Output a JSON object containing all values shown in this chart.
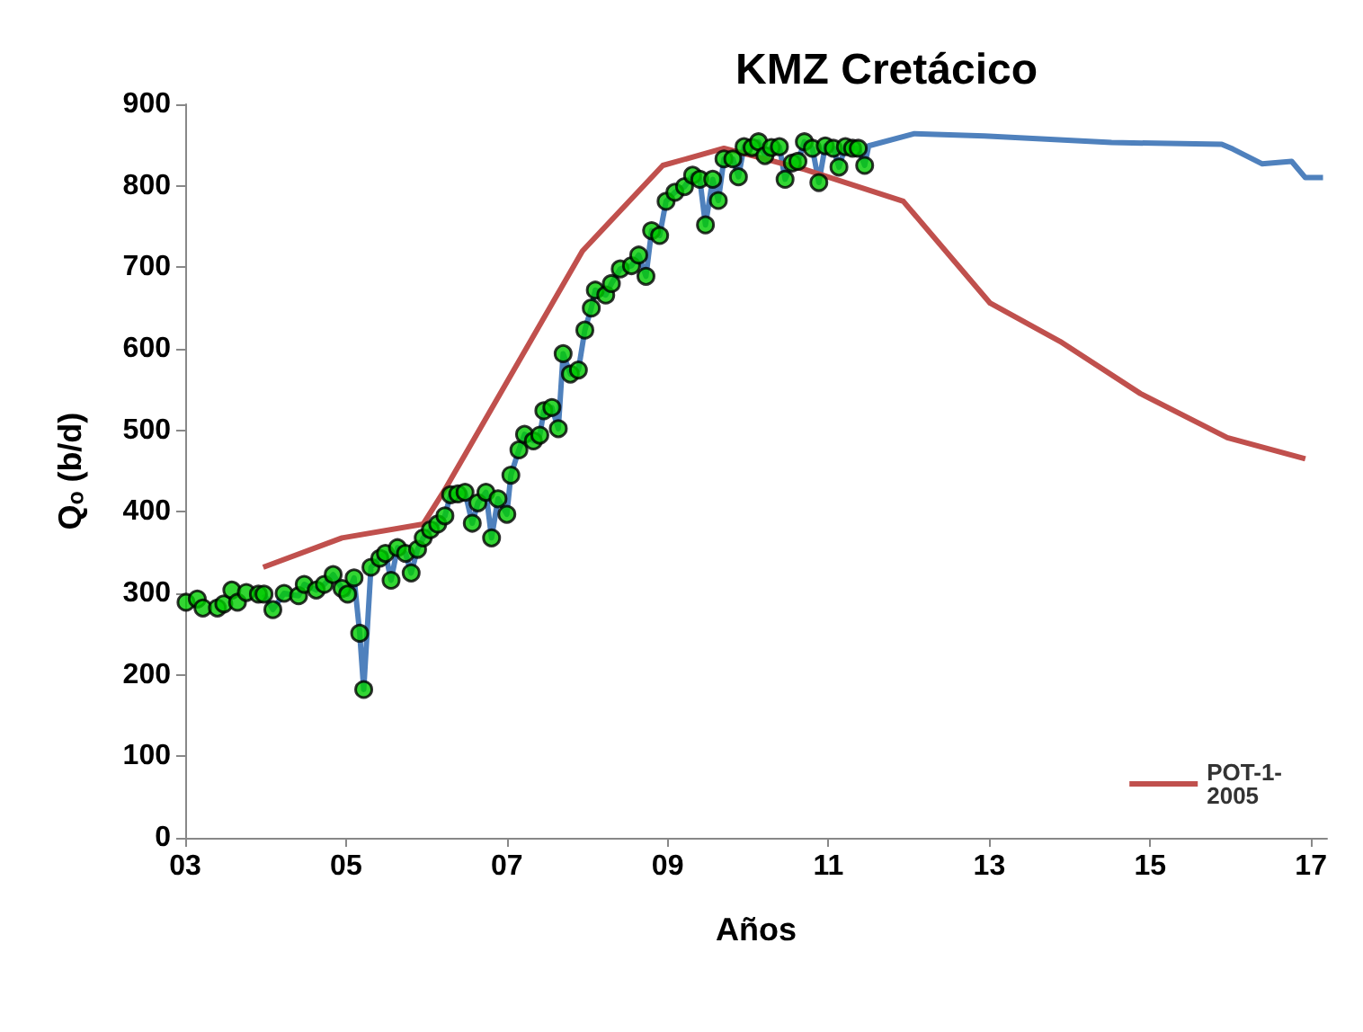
{
  "chart_data": {
    "type": "line",
    "title": "KMZ Cretácico",
    "xlabel": "Años",
    "ylabel": "Qₒ (b/d)",
    "xlim": [
      3,
      17.2
    ],
    "xticks": [
      {
        "value": 3,
        "label": "03"
      },
      {
        "value": 5,
        "label": "05"
      },
      {
        "value": 7,
        "label": "07"
      },
      {
        "value": 9,
        "label": "09"
      },
      11,
      13,
      15,
      17
    ],
    "ylim": [
      0,
      900
    ],
    "yticks": [
      0,
      100,
      200,
      300,
      400,
      500,
      600,
      700,
      800,
      900
    ],
    "grid": false,
    "legend": "bottom right",
    "series": [
      {
        "color": "#4f81bd",
        "x": [
          3.98,
          4.09,
          4.23,
          4.41,
          4.48,
          4.63,
          4.73,
          4.84,
          4.95,
          5.02,
          5.1,
          5.17,
          5.22,
          5.31,
          5.42,
          5.49,
          5.56,
          5.64,
          5.74,
          5.81,
          5.89,
          5.96,
          6.05,
          6.14,
          6.23,
          6.3,
          6.39,
          6.48,
          6.57,
          6.64,
          6.74,
          6.81,
          6.89,
          7,
          7.05,
          7.15,
          7.22,
          7.33,
          7.41,
          7.46,
          7.56,
          7.64,
          7.7,
          7.79,
          7.89,
          7.97,
          8.05,
          8.1,
          8.23,
          8.3,
          8.41,
          8.55,
          8.64,
          8.73,
          8.8,
          8.9,
          8.98,
          9.09,
          9.21,
          9.31,
          9.4,
          9.47,
          9.56,
          9.63,
          9.7,
          9.81,
          9.88,
          9.95,
          10.05,
          10.13,
          10.21,
          10.29,
          10.39,
          10.46,
          10.55,
          10.62,
          10.7,
          10.8,
          10.88,
          10.96,
          11.06,
          11.13,
          11.21,
          11.3,
          11.37,
          11.45,
          11.5,
          12.07,
          12.94,
          14.52,
          15.89,
          16.03,
          16.39,
          16.76,
          16.93,
          17.15
        ],
        "values": [
          299,
          280,
          300,
          297,
          311,
          304,
          311,
          323,
          306,
          299,
          319,
          251,
          182,
          332,
          343,
          349,
          316,
          356,
          349,
          325,
          354,
          368,
          378,
          385,
          395,
          421,
          422,
          424,
          386,
          411,
          424,
          368,
          416,
          397,
          445,
          476,
          495,
          487,
          494,
          524,
          528,
          502,
          594,
          569,
          574,
          623,
          650,
          672,
          666,
          680,
          698,
          702,
          715,
          689,
          745,
          739,
          781,
          792,
          799,
          813,
          808,
          752,
          808,
          782,
          833,
          833,
          811,
          848,
          847,
          854,
          837,
          847,
          848,
          808,
          828,
          830,
          854,
          846,
          804,
          849,
          846,
          823,
          848,
          846,
          846,
          825,
          849,
          864,
          861,
          853,
          851,
          845,
          827,
          830,
          810,
          810
        ]
      },
      {
        "type": "scatter",
        "color": "#00cc00",
        "marker": "circle",
        "x": [
          3.01,
          3.15,
          3.22,
          3.4,
          3.48,
          3.58,
          3.65,
          3.76,
          3.91,
          3.98,
          4.09,
          4.23,
          4.41,
          4.48,
          4.63,
          4.73,
          4.84,
          4.95,
          5.02,
          5.1,
          5.17,
          5.22,
          5.31,
          5.42,
          5.49,
          5.56,
          5.64,
          5.74,
          5.81,
          5.89,
          5.96,
          6.05,
          6.14,
          6.23,
          6.3,
          6.39,
          6.48,
          6.57,
          6.64,
          6.74,
          6.81,
          6.89,
          7,
          7.05,
          7.15,
          7.22,
          7.33,
          7.41,
          7.46,
          7.56,
          7.64,
          7.7,
          7.79,
          7.89,
          7.97,
          8.05,
          8.1,
          8.23,
          8.3,
          8.41,
          8.55,
          8.64,
          8.73,
          8.8,
          8.9,
          8.98,
          9.09,
          9.21,
          9.31,
          9.4,
          9.47,
          9.56,
          9.63,
          9.7,
          9.81,
          9.88,
          9.95,
          10.05,
          10.13,
          10.21,
          10.29,
          10.39,
          10.46,
          10.55,
          10.62,
          10.7,
          10.8,
          10.88,
          10.96,
          11.06,
          11.13,
          11.21,
          11.3,
          11.37,
          11.45
        ],
        "values": [
          289,
          293,
          282,
          282,
          287,
          304,
          289,
          301,
          299,
          299,
          280,
          300,
          297,
          311,
          304,
          311,
          323,
          306,
          299,
          319,
          251,
          182,
          332,
          343,
          349,
          316,
          356,
          349,
          325,
          354,
          368,
          378,
          385,
          395,
          421,
          422,
          424,
          386,
          411,
          424,
          368,
          416,
          397,
          445,
          476,
          495,
          487,
          494,
          524,
          528,
          502,
          594,
          569,
          574,
          623,
          650,
          672,
          666,
          680,
          698,
          702,
          715,
          689,
          745,
          739,
          781,
          792,
          799,
          813,
          808,
          752,
          808,
          782,
          833,
          833,
          811,
          848,
          847,
          854,
          837,
          847,
          848,
          808,
          828,
          830,
          854,
          846,
          804,
          849,
          846,
          823,
          848,
          846,
          846,
          825
        ]
      },
      {
        "name": "POT-1-2005",
        "color": "#c0504d",
        "x": [
          3.97,
          4.95,
          5.96,
          6.24,
          7.94,
          8.94,
          9.7,
          10.71,
          11.93,
          13.01,
          13.88,
          14.88,
          15.96,
          16.93
        ],
        "values": [
          332,
          368,
          385,
          429,
          720,
          825,
          846,
          820,
          781,
          656,
          609,
          545,
          491,
          465
        ]
      }
    ]
  }
}
